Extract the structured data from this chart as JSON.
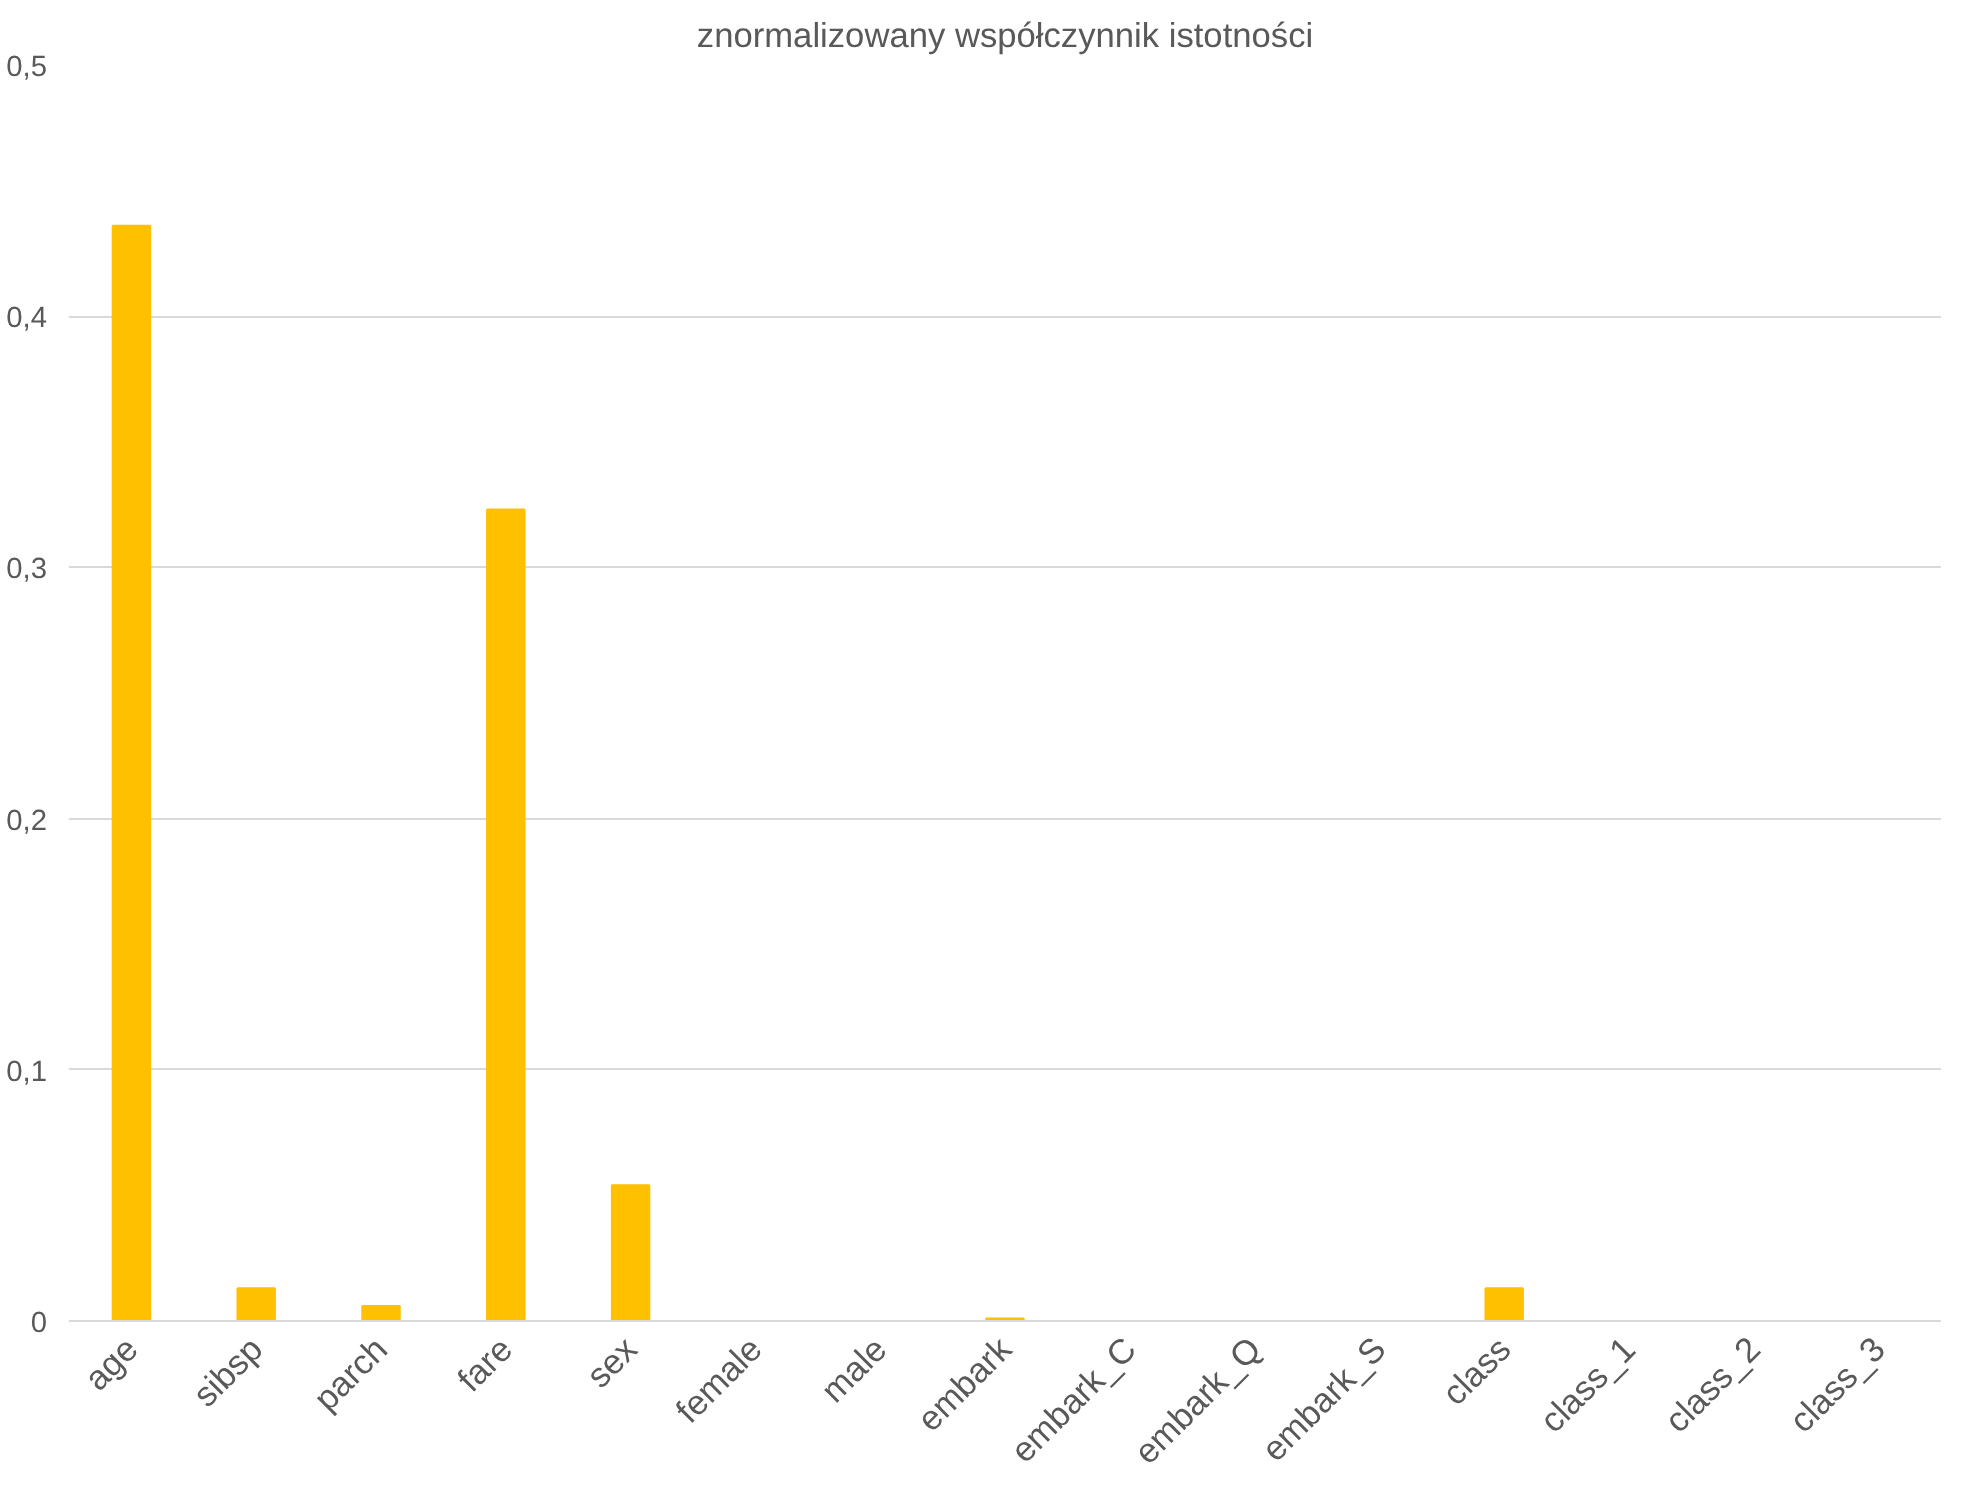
{
  "chart_data": {
    "type": "bar",
    "title": "znormalizowany współczynnik istotności",
    "categories": [
      "age",
      "sibsp",
      "parch",
      "fare",
      "sex",
      "female",
      "male",
      "embark",
      "embark_C",
      "embark_Q",
      "embark_S",
      "class",
      "class_1",
      "class_2",
      "class_3"
    ],
    "values": [
      0.436,
      0.013,
      0.006,
      0.323,
      0.054,
      0,
      0,
      0.001,
      0,
      0,
      0,
      0.013,
      0,
      0,
      0
    ],
    "color": "#ffc000",
    "ylim": [
      0,
      0.5
    ],
    "yticks": [
      {
        "value": 0,
        "label": "0"
      },
      {
        "value": 0.1,
        "label": "0,1"
      },
      {
        "value": 0.2,
        "label": "0,2"
      },
      {
        "value": 0.3,
        "label": "0,3"
      },
      {
        "value": 0.4,
        "label": "0,4"
      },
      {
        "value": 0.5,
        "label": "0,5"
      }
    ],
    "grid": "y"
  }
}
